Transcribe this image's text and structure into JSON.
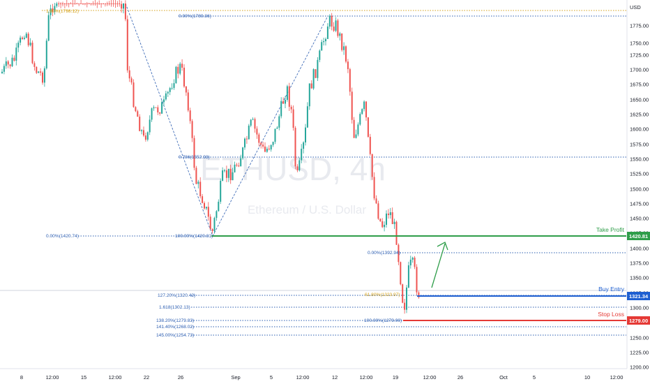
{
  "watermark": {
    "symbol": "ETHUSD, 4h",
    "description": "Ethereum / U.S. Dollar"
  },
  "currency": "USD",
  "price_axis": {
    "ticks": [
      "1775.00",
      "1750.00",
      "1725.00",
      "1700.00",
      "1675.00",
      "1650.00",
      "1625.00",
      "1600.00",
      "1575.00",
      "1550.00",
      "1525.00",
      "1500.00",
      "1475.00",
      "1450.00",
      "1425.00",
      "1400.00",
      "1375.00",
      "1350.00",
      "1325.00",
      "1300.00",
      "1275.00",
      "1250.00",
      "1225.00",
      "1200.00"
    ]
  },
  "time_axis": {
    "labels": [
      "8",
      "12:00",
      "15",
      "12:00",
      "22",
      "26",
      "Sep",
      "5",
      "12:00",
      "12",
      "12:00",
      "19",
      "12:00",
      "26",
      "Oct",
      "5",
      "10",
      "12:00"
    ]
  },
  "fib_labels": [
    {
      "text": "1.80%(1798.12)",
      "color": "#d4a017"
    },
    {
      "text": "0.00%(1789.86)",
      "color": "#2a5cb0"
    },
    {
      "text": "0.786(1552.93)",
      "color": "#2a5cb0"
    },
    {
      "text": "0.00%(1420.74)",
      "color": "#2a5cb0"
    },
    {
      "text": "100.00%(1420.81)",
      "color": "#2a5cb0"
    },
    {
      "text": "0.00%(1392.94)",
      "color": "#2a5cb0"
    },
    {
      "text": "61.80%(1323.97)",
      "color": "#d4a017"
    },
    {
      "text": "127.20%(1320.42)",
      "color": "#2a5cb0"
    },
    {
      "text": "1.618(1302.13)",
      "color": "#2a5cb0"
    },
    {
      "text": "138.20%(1279.83)",
      "color": "#2a5cb0"
    },
    {
      "text": "100.00%(1279.00)",
      "color": "#2a5cb0"
    },
    {
      "text": "141.40%(1268.02)",
      "color": "#2a5cb0"
    },
    {
      "text": "145.00%(1254.73)",
      "color": "#2a5cb0"
    }
  ],
  "levels": {
    "take_profit": {
      "label": "Take Profit",
      "price": "1420.81",
      "color": "#2e9d49"
    },
    "buy_entry": {
      "label": "Buy Entry",
      "price": "1321.34",
      "color": "#1e5fd1"
    },
    "stop_loss": {
      "label": "Stop Loss",
      "price": "1279.00",
      "color": "#e53935"
    }
  },
  "colors": {
    "up": "#26a69a",
    "down": "#ef5350",
    "fib_line": "#2a5cb0",
    "fib_gold": "#d4a017"
  },
  "icons": {
    "projection_arrow": "arrow-up-right-icon"
  }
}
